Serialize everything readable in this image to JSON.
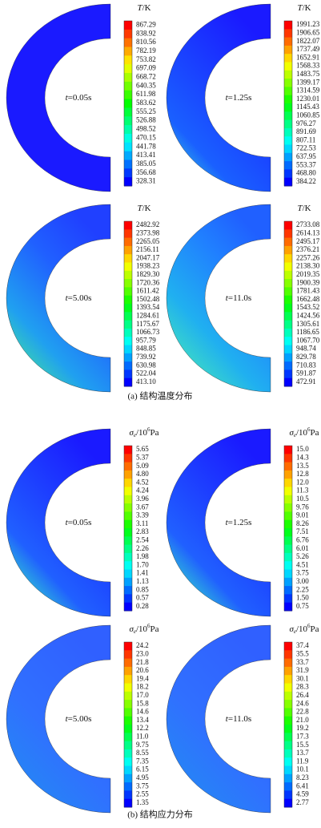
{
  "figure": {
    "groups": [
      {
        "caption": "(a) 结构温度分布",
        "panels": [
          {
            "time": {
              "var": "t",
              "text": "=0.05s"
            },
            "legend_title": {
              "symbol": "T",
              "rest": "/K"
            },
            "labels": [
              "867.29",
              "838.92",
              "810.56",
              "782.19",
              "753.82",
              "697.09",
              "668.72",
              "640.35",
              "611.98",
              "583.62",
              "555.25",
              "526.88",
              "498.52",
              "470.15",
              "441.78",
              "413.41",
              "385.05",
              "356.68",
              "328.31"
            ]
          },
          {
            "time": {
              "var": "t",
              "text": "=1.25s"
            },
            "legend_title": {
              "symbol": "T",
              "rest": "/K"
            },
            "labels": [
              "1991.23",
              "1906.65",
              "1822.07",
              "1737.49",
              "1652.91",
              "1568.33",
              "1483.75",
              "1399.17",
              "1314.59",
              "1230.01",
              "1145.43",
              "1060.85",
              "976.27",
              "891.69",
              "807.11",
              "722.53",
              "637.95",
              "553.37",
              "468.80",
              "384.22"
            ]
          },
          {
            "time": {
              "var": "t",
              "text": "=5.00s"
            },
            "legend_title": {
              "symbol": "T",
              "rest": "/K"
            },
            "labels": [
              "2482.92",
              "2373.98",
              "2265.05",
              "2156.11",
              "2047.17",
              "1938.23",
              "1829.30",
              "1720.36",
              "1611.42",
              "1502.48",
              "1393.54",
              "1284.61",
              "1175.67",
              "1066.73",
              "957.79",
              "848.85",
              "739.92",
              "630.98",
              "522.04",
              "413.10"
            ]
          },
          {
            "time": {
              "var": "t",
              "text": "=11.0s"
            },
            "legend_title": {
              "symbol": "T",
              "rest": "/K"
            },
            "labels": [
              "2733.08",
              "2614.13",
              "2495.17",
              "2376.21",
              "2257.26",
              "2138.30",
              "2019.35",
              "1900.39",
              "1781.43",
              "1662.48",
              "1543.52",
              "1424.56",
              "1305.61",
              "1186.65",
              "1067.70",
              "948.74",
              "829.78",
              "710.83",
              "591.87",
              "472.91"
            ]
          }
        ]
      },
      {
        "caption": "(b) 结构应力分布",
        "panels": [
          {
            "time": {
              "var": "t",
              "text": "=0.05s"
            },
            "legend_title": {
              "symbol": "σ",
              "sub": "e",
              "rest": "/10",
              "sup": "6",
              "unit": "Pa"
            },
            "labels": [
              "5.65",
              "5.37",
              "5.09",
              "4.80",
              "4.52",
              "4.24",
              "3.96",
              "3.67",
              "3.39",
              "3.11",
              "2.83",
              "2.54",
              "2.26",
              "1.98",
              "1.70",
              "1.41",
              "1.13",
              "0.85",
              "0.57",
              "0.28"
            ]
          },
          {
            "time": {
              "var": "t",
              "text": "=1.25s"
            },
            "legend_title": {
              "symbol": "σ",
              "sub": "e",
              "rest": "/10",
              "sup": "6",
              "unit": "Pa"
            },
            "labels": [
              "15.0",
              "14.3",
              "13.5",
              "12.8",
              "12.0",
              "11.3",
              "10.5",
              "9.76",
              "9.01",
              "8.26",
              "7.51",
              "6.76",
              "6.01",
              "5.26",
              "4.51",
              "3.75",
              "3.00",
              "2.25",
              "1.50",
              "0.75"
            ]
          },
          {
            "time": {
              "var": "t",
              "text": "=5.00s"
            },
            "legend_title": {
              "symbol": "σ",
              "sub": "e",
              "rest": "/10",
              "sup": "6",
              "unit": "Pa"
            },
            "labels": [
              "24.2",
              "23.0",
              "21.8",
              "20.6",
              "19.4",
              "18.2",
              "17.0",
              "15.8",
              "14.6",
              "13.4",
              "12.2",
              "11.0",
              "9.75",
              "8.55",
              "7.35",
              "6.15",
              "4.95",
              "3.75",
              "2.55",
              "1.35"
            ]
          },
          {
            "time": {
              "var": "t",
              "text": "=11.0s"
            },
            "legend_title": {
              "symbol": "σ",
              "sub": "e",
              "rest": "/10",
              "sup": "6",
              "unit": "Pa"
            },
            "labels": [
              "37.4",
              "35.5",
              "33.7",
              "31.9",
              "30.1",
              "28.3",
              "26.4",
              "24.6",
              "22.8",
              "21.0",
              "19.2",
              "17.3",
              "15.5",
              "13.7",
              "11.9",
              "10.1",
              "8.23",
              "6.41",
              "4.59",
              "2.77"
            ]
          }
        ]
      }
    ]
  }
}
